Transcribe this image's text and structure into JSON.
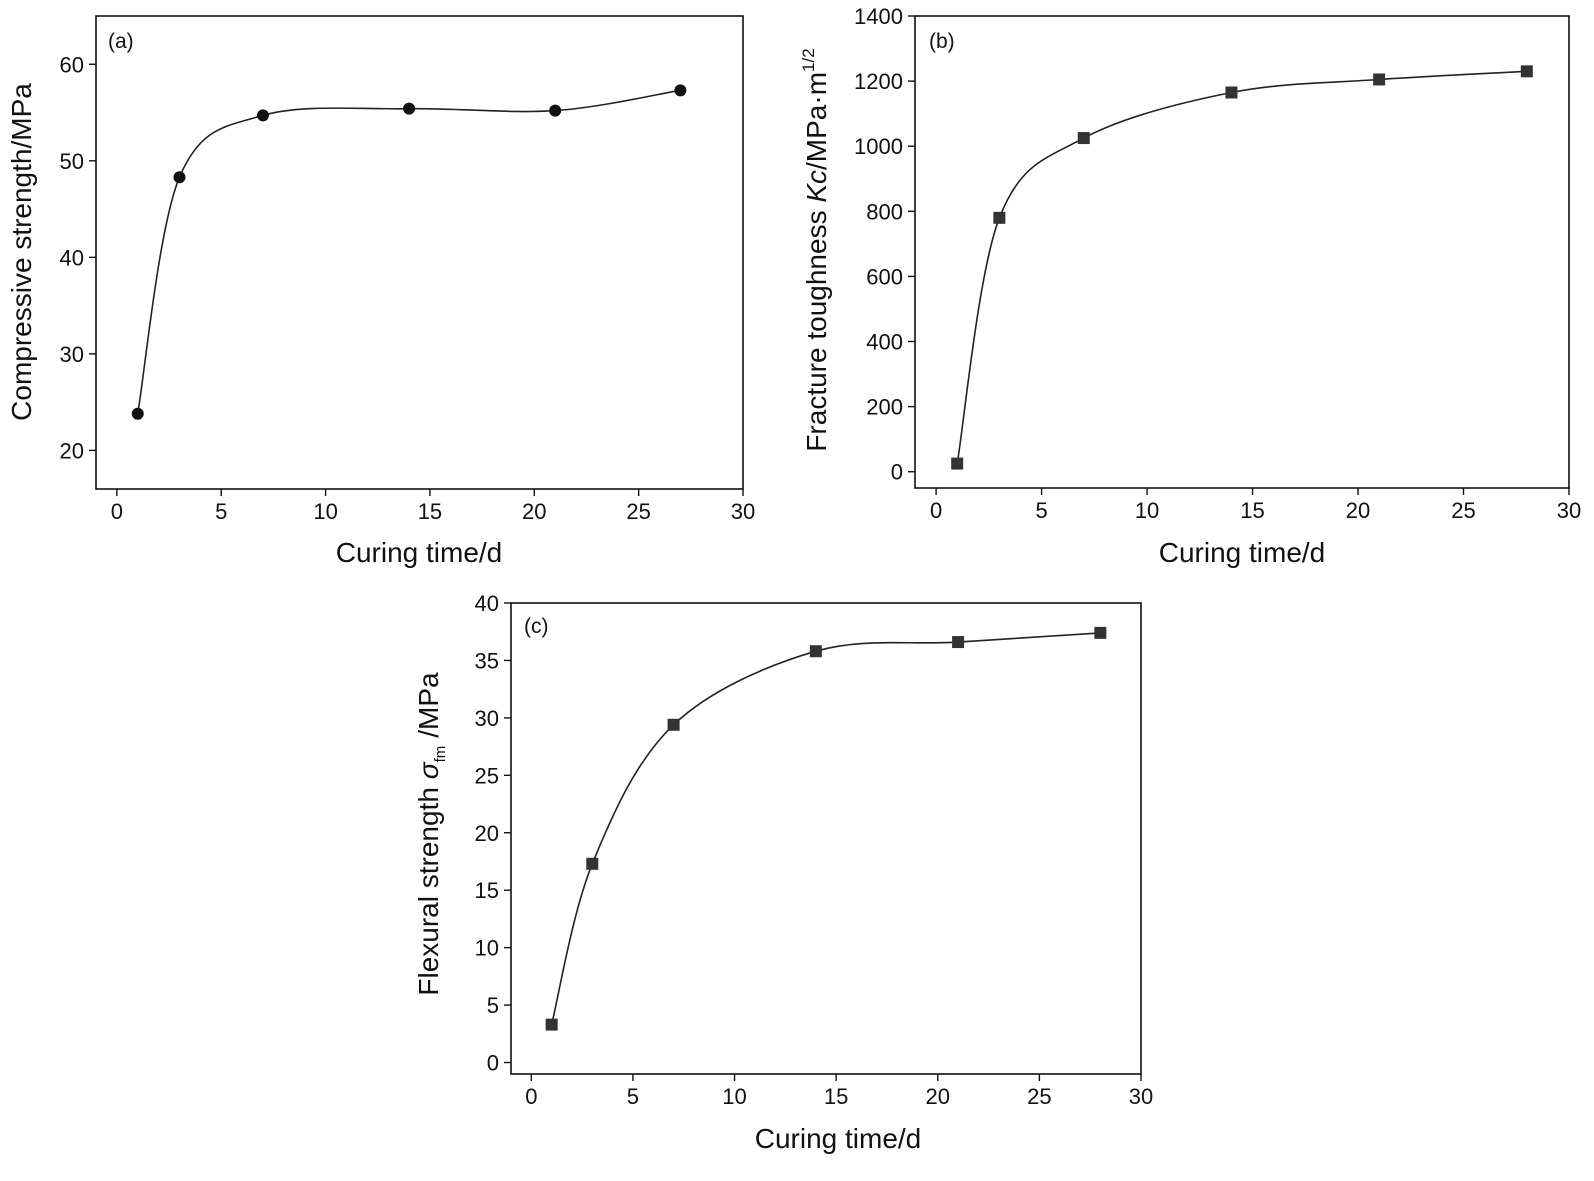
{
  "colors": {
    "axis": "#111111",
    "marker": "#333333",
    "curve": "#222222"
  },
  "chart_data": [
    {
      "type": "scatter",
      "panel": "(a)",
      "xlabel": "Curing time/d",
      "ylabel": "Compressive strength/MPa",
      "xlim": [
        -1,
        30
      ],
      "ylim": [
        16,
        65
      ],
      "xticks": [
        0,
        5,
        10,
        15,
        20,
        25,
        30
      ],
      "yticks": [
        20,
        30,
        40,
        50,
        60
      ],
      "marker": "circle",
      "series": [
        {
          "x": [
            1,
            3,
            7,
            14,
            21,
            27
          ],
          "y": [
            23.8,
            48.3,
            54.7,
            55.4,
            55.2,
            57.3
          ]
        }
      ],
      "fit_curve": true
    },
    {
      "type": "scatter",
      "panel": "(b)",
      "xlabel": "Curing time/d",
      "ylabel_parts": {
        "prefix": "Fracture toughness ",
        "italic": "Kc",
        "unit": "/MPa·m",
        "sup": "1/2"
      },
      "xlim": [
        -1,
        30
      ],
      "ylim": [
        -50,
        1400
      ],
      "xticks": [
        0,
        5,
        10,
        15,
        20,
        25,
        30
      ],
      "yticks": [
        0,
        200,
        400,
        600,
        800,
        1000,
        1200,
        1400
      ],
      "marker": "square",
      "series": [
        {
          "x": [
            1,
            3,
            7,
            14,
            21,
            28
          ],
          "y": [
            25,
            780,
            1025,
            1165,
            1205,
            1230
          ]
        }
      ],
      "fit_curve": true
    },
    {
      "type": "scatter",
      "panel": "(c)",
      "xlabel": "Curing time/d",
      "ylabel_parts": {
        "prefix": "Flexural strength ",
        "italic": "σ",
        "sub": "fm",
        "unit": "/MPa"
      },
      "xlim": [
        -1,
        30
      ],
      "ylim": [
        -1,
        40
      ],
      "xticks": [
        0,
        5,
        10,
        15,
        20,
        25,
        30
      ],
      "yticks": [
        0,
        5,
        10,
        15,
        20,
        25,
        30,
        35,
        40
      ],
      "marker": "square",
      "series": [
        {
          "x": [
            1,
            3,
            7,
            14,
            21,
            28
          ],
          "y": [
            3.3,
            17.3,
            29.4,
            35.8,
            36.6,
            37.4
          ]
        }
      ],
      "fit_curve": true
    }
  ]
}
